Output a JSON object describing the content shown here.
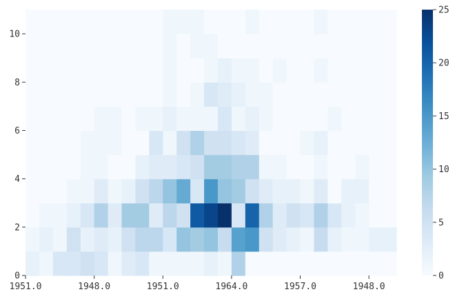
{
  "chart_data": {
    "type": "heatmap",
    "title": "",
    "xlabel": "",
    "ylabel": "",
    "x_tick_labels": [
      "1951.0",
      "1948.0",
      "1951.0",
      "1964.0",
      "1957.0",
      "1948.0"
    ],
    "y_ticks": [
      0,
      2,
      4,
      6,
      8,
      10
    ],
    "ylim": [
      0,
      11
    ],
    "n_cols": 27,
    "n_rows": 11,
    "colormap": "Blues",
    "colorbar": {
      "min": 0,
      "max": 25,
      "ticks": [
        0,
        5,
        10,
        15,
        20,
        25
      ]
    },
    "grid": false,
    "values": [
      [
        2,
        1,
        4,
        4,
        5,
        4,
        1,
        3,
        4,
        1,
        1,
        1,
        1,
        2,
        1,
        8,
        0,
        0,
        0,
        0,
        0,
        0,
        0,
        0,
        0,
        0,
        0
      ],
      [
        1,
        2,
        1,
        5,
        2,
        3,
        2,
        5,
        7,
        7,
        4,
        10,
        9,
        10,
        6,
        14,
        15,
        5,
        3,
        2,
        1,
        6,
        2,
        1,
        1,
        2,
        2
      ],
      [
        0,
        1,
        1,
        2,
        4,
        8,
        3,
        9,
        9,
        3,
        7,
        5,
        21,
        23,
        25,
        4,
        20,
        8,
        3,
        5,
        4,
        8,
        4,
        2,
        1,
        0,
        0
      ],
      [
        0,
        0,
        0,
        1,
        1,
        3,
        1,
        2,
        5,
        7,
        10,
        13,
        4,
        15,
        10,
        9,
        5,
        3,
        2,
        2,
        1,
        3,
        0,
        2,
        2,
        0,
        0
      ],
      [
        0,
        0,
        0,
        0,
        1,
        1,
        0,
        0,
        2,
        3,
        3,
        4,
        5,
        9,
        9,
        8,
        8,
        1,
        1,
        0,
        0,
        1,
        0,
        0,
        1,
        0,
        0
      ],
      [
        0,
        0,
        0,
        0,
        1,
        1,
        1,
        0,
        0,
        4,
        1,
        5,
        8,
        5,
        5,
        4,
        3,
        0,
        0,
        0,
        1,
        2,
        0,
        0,
        0,
        0,
        0
      ],
      [
        0,
        0,
        0,
        0,
        0,
        1,
        1,
        0,
        1,
        1,
        2,
        1,
        1,
        1,
        4,
        1,
        2,
        1,
        0,
        0,
        0,
        0,
        1,
        0,
        0,
        0,
        0
      ],
      [
        0,
        0,
        0,
        0,
        0,
        0,
        0,
        0,
        0,
        0,
        1,
        0,
        1,
        4,
        3,
        2,
        1,
        1,
        0,
        0,
        0,
        0,
        0,
        0,
        0,
        0,
        0
      ],
      [
        0,
        0,
        0,
        0,
        0,
        0,
        0,
        0,
        0,
        0,
        1,
        0,
        0,
        1,
        2,
        1,
        1,
        0,
        1,
        0,
        0,
        1,
        0,
        0,
        0,
        0,
        0
      ],
      [
        0,
        0,
        0,
        0,
        0,
        0,
        0,
        0,
        0,
        0,
        1,
        0,
        1,
        1,
        0,
        0,
        0,
        0,
        0,
        0,
        0,
        0,
        0,
        0,
        0,
        0,
        0
      ],
      [
        0,
        0,
        0,
        0,
        0,
        0,
        0,
        0,
        0,
        0,
        1,
        1,
        1,
        0,
        0,
        0,
        1,
        0,
        0,
        0,
        0,
        1,
        0,
        0,
        0,
        0,
        0
      ]
    ]
  }
}
